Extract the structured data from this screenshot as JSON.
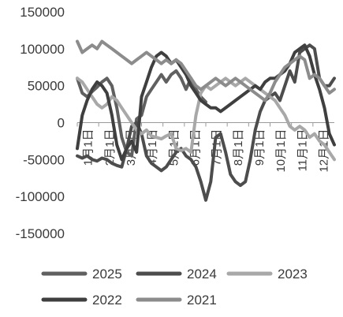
{
  "chart_data": {
    "type": "line",
    "title": "",
    "xlabel": "",
    "ylabel": "",
    "ylim": [
      -150000,
      150000
    ],
    "yticks": [
      150000,
      100000,
      50000,
      0,
      -50000,
      -100000,
      -150000
    ],
    "ytick_labels": [
      "150000",
      "100000",
      "50000",
      "0",
      "-50000",
      "-100000",
      "-150000"
    ],
    "x_categories": [
      "1月1日",
      "2月1日",
      "3月1日",
      "4月1日",
      "5月1日",
      "6月1日",
      "7月1日",
      "8月1日",
      "9月1日",
      "10月1日",
      "11月1日",
      "12月1日"
    ],
    "x_range": [
      1,
      53
    ],
    "gridlines": false,
    "legend_position": "bottom",
    "series": [
      {
        "name": "2025",
        "color": "#606060",
        "x": [
          1,
          2,
          3,
          4,
          5,
          6,
          7,
          8,
          9,
          10,
          11,
          12,
          13,
          14,
          15,
          16,
          17,
          18,
          19,
          20,
          21,
          22,
          23,
          24,
          25,
          26,
          27
        ],
        "values": [
          60000,
          40000,
          35000,
          42000,
          48000,
          55000,
          60000,
          50000,
          20000,
          -20000,
          -40000,
          -45000,
          5000,
          10000,
          35000,
          45000,
          55000,
          65000,
          55000,
          65000,
          70000,
          60000,
          45000,
          60000,
          45000,
          35000,
          28000
        ]
      },
      {
        "name": "2024",
        "color": "#4d4d4d",
        "x": [
          1,
          2,
          3,
          4,
          5,
          6,
          7,
          8,
          9,
          10,
          11,
          12,
          13,
          14,
          15,
          16,
          17,
          18,
          19,
          20,
          21,
          22,
          23,
          24,
          25,
          26,
          27,
          28,
          29,
          30,
          31,
          32,
          33,
          34,
          35,
          36,
          37,
          38,
          39,
          40,
          41,
          42,
          43,
          44,
          45,
          46,
          47,
          48,
          49,
          50,
          51,
          52,
          53
        ],
        "values": [
          -45000,
          -48000,
          -45000,
          -50000,
          -52000,
          -48000,
          -50000,
          -55000,
          -58000,
          -60000,
          -35000,
          -5000,
          0,
          -15000,
          -45000,
          -55000,
          -60000,
          -65000,
          -60000,
          -50000,
          -40000,
          -35000,
          -45000,
          -50000,
          -60000,
          -80000,
          -105000,
          -80000,
          -20000,
          -15000,
          -40000,
          -70000,
          -80000,
          -85000,
          -80000,
          -50000,
          -10000,
          15000,
          30000,
          35000,
          40000,
          30000,
          50000,
          70000,
          55000,
          95000,
          100000,
          105000,
          100000,
          60000,
          50000,
          50000,
          60000
        ]
      },
      {
        "name": "2023",
        "color": "#a8a8a8",
        "x": [
          1,
          2,
          3,
          4,
          5,
          6,
          7,
          8,
          9,
          10,
          11,
          12,
          13,
          14,
          15,
          16,
          17,
          18,
          19,
          20,
          21,
          22,
          23,
          24,
          25,
          26,
          27,
          28,
          29,
          30,
          31,
          32,
          33,
          34,
          35,
          36,
          37,
          38,
          39,
          40,
          41,
          42,
          43,
          44,
          45,
          46,
          47,
          48,
          49,
          50,
          51,
          52,
          53
        ],
        "values": [
          60000,
          55000,
          45000,
          35000,
          25000,
          20000,
          25000,
          35000,
          30000,
          20000,
          10000,
          0,
          -10000,
          -15000,
          -10000,
          -18000,
          -20000,
          -22000,
          -18000,
          -15000,
          -35000,
          -38000,
          -35000,
          -40000,
          10000,
          40000,
          50000,
          45000,
          50000,
          55000,
          60000,
          55000,
          50000,
          55000,
          60000,
          55000,
          50000,
          45000,
          40000,
          35000,
          30000,
          20000,
          10000,
          -5000,
          -10000,
          -5000,
          -10000,
          -20000,
          -15000,
          -25000,
          -30000,
          -40000,
          -50000
        ]
      },
      {
        "name": "2022",
        "color": "#3f3f3f",
        "x": [
          1,
          2,
          3,
          4,
          5,
          6,
          7,
          8,
          9,
          10,
          11,
          12,
          13,
          14,
          15,
          16,
          17,
          18,
          19,
          20,
          21,
          22,
          23,
          24,
          25,
          26,
          27,
          28,
          29,
          30,
          31,
          32,
          33,
          34,
          35,
          36,
          37,
          38,
          39,
          40,
          41,
          42,
          43,
          44,
          45,
          46,
          47,
          48,
          49,
          50,
          51,
          52,
          53
        ],
        "values": [
          -35000,
          10000,
          30000,
          45000,
          55000,
          50000,
          40000,
          10000,
          -30000,
          -50000,
          -35000,
          -25000,
          -40000,
          35000,
          55000,
          75000,
          90000,
          95000,
          90000,
          80000,
          85000,
          75000,
          65000,
          50000,
          40000,
          30000,
          25000,
          20000,
          20000,
          15000,
          20000,
          25000,
          30000,
          35000,
          40000,
          45000,
          50000,
          45000,
          55000,
          60000,
          60000,
          65000,
          70000,
          80000,
          95000,
          100000,
          105000,
          90000,
          65000,
          45000,
          20000,
          -15000,
          -30000
        ]
      },
      {
        "name": "2021",
        "color": "#8c8c8c",
        "x": [
          1,
          2,
          3,
          4,
          5,
          6,
          7,
          8,
          9,
          10,
          11,
          12,
          13,
          14,
          15,
          16,
          17,
          18,
          19,
          20,
          21,
          22,
          23,
          24,
          25,
          26,
          27,
          28,
          29,
          30,
          31,
          32,
          33,
          34,
          35,
          36,
          37,
          38,
          39,
          40,
          41,
          42,
          43,
          44,
          45,
          46,
          47,
          48,
          49,
          50,
          51,
          52,
          53
        ],
        "values": [
          110000,
          95000,
          100000,
          105000,
          100000,
          110000,
          105000,
          100000,
          95000,
          90000,
          85000,
          80000,
          85000,
          90000,
          95000,
          90000,
          85000,
          80000,
          85000,
          80000,
          85000,
          80000,
          70000,
          60000,
          50000,
          45000,
          50000,
          55000,
          60000,
          55000,
          50000,
          55000,
          60000,
          55000,
          50000,
          45000,
          40000,
          35000,
          30000,
          40000,
          55000,
          65000,
          75000,
          80000,
          85000,
          90000,
          85000,
          60000,
          65000,
          60000,
          50000,
          40000,
          45000
        ]
      }
    ]
  }
}
